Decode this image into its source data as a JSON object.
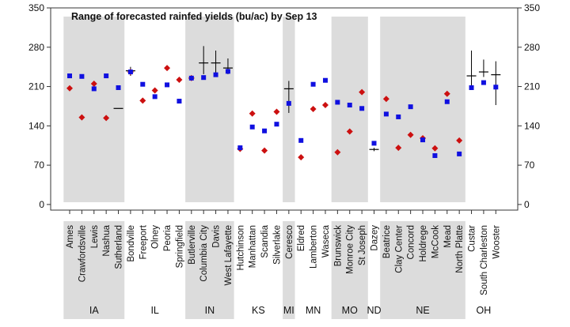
{
  "chart_data": {
    "type": "scatter",
    "title": "Range of forecasted rainfed yields (bu/ac) by Sep 13",
    "xlabel": "",
    "ylabel": "",
    "ylim": [
      -10,
      350
    ],
    "yticks": [
      0,
      70,
      140,
      210,
      280,
      350
    ],
    "grid": false,
    "legend": "none",
    "colors": {
      "square": "#1010e0",
      "diamond": "#cc1010",
      "range": "#000000",
      "band": "#dcdcdc",
      "axis": "#333333"
    },
    "sites": [
      {
        "name": "Ames",
        "state": "IA",
        "square": 229,
        "diamond": 207
      },
      {
        "name": "Crawfordsville",
        "state": "IA",
        "square": 228,
        "diamond": 155
      },
      {
        "name": "Lewis",
        "state": "IA",
        "square": 206,
        "diamond": 215
      },
      {
        "name": "Nashua",
        "state": "IA",
        "square": 229,
        "diamond": 154
      },
      {
        "name": "Sutherland",
        "state": "IA",
        "square": 208,
        "range_mid": 171
      },
      {
        "name": "Bondville",
        "state": "IL",
        "square": 236,
        "diamond": 236,
        "range_low": 229,
        "range_high": 245,
        "range_mid": 238
      },
      {
        "name": "Freeport",
        "state": "IL",
        "square": 214,
        "diamond": 185
      },
      {
        "name": "Olney",
        "state": "IL",
        "square": 192,
        "diamond": 203
      },
      {
        "name": "Peoria",
        "state": "IL",
        "square": 213,
        "diamond": 243
      },
      {
        "name": "Springfield",
        "state": "IL",
        "square": 184,
        "diamond": 222
      },
      {
        "name": "Butlerville",
        "state": "IN",
        "square": 225,
        "diamond": 225
      },
      {
        "name": "Columbia City",
        "state": "IN",
        "square": 226,
        "range_low": 232,
        "range_high": 282,
        "range_mid": 252
      },
      {
        "name": "Davis",
        "state": "IN",
        "square": 231,
        "range_low": 234,
        "range_high": 274,
        "range_mid": 252
      },
      {
        "name": "West Lafayette",
        "state": "IN",
        "square": 237,
        "range_low": 232,
        "range_high": 260,
        "range_mid": 243
      },
      {
        "name": "Hutchinson",
        "state": "KS",
        "square": 101,
        "diamond": 99
      },
      {
        "name": "Manhattan",
        "state": "KS",
        "square": 138,
        "diamond": 162
      },
      {
        "name": "Scandia",
        "state": "KS",
        "square": 131,
        "diamond": 96
      },
      {
        "name": "Silverlake",
        "state": "KS",
        "square": 143,
        "diamond": 165
      },
      {
        "name": "Ceresco",
        "state": "MI",
        "square": 180,
        "range_low": 163,
        "range_high": 220,
        "range_mid": 206
      },
      {
        "name": "Eldred",
        "state": "MN",
        "square": 114,
        "diamond": 84
      },
      {
        "name": "Lamberton",
        "state": "MN",
        "square": 214,
        "diamond": 170
      },
      {
        "name": "Waseca",
        "state": "MN",
        "square": 221,
        "diamond": 177
      },
      {
        "name": "Brunswick",
        "state": "MO",
        "square": 182,
        "diamond": 93
      },
      {
        "name": "Monroe City",
        "state": "MO",
        "square": 177,
        "diamond": 130
      },
      {
        "name": "St Joseph",
        "state": "MO",
        "square": 171,
        "diamond": 200
      },
      {
        "name": "Dazey",
        "state": "ND",
        "square": 109,
        "range_low": 95,
        "range_high": 101,
        "range_mid": 98
      },
      {
        "name": "Beatrice",
        "state": "NE",
        "square": 161,
        "diamond": 188
      },
      {
        "name": "Clay Center",
        "state": "NE",
        "square": 156,
        "diamond": 101
      },
      {
        "name": "Concord",
        "state": "NE",
        "square": 174,
        "diamond": 124
      },
      {
        "name": "Holdrege",
        "state": "NE",
        "square": 115,
        "diamond": 118
      },
      {
        "name": "McCook",
        "state": "NE",
        "square": 87,
        "diamond": 100
      },
      {
        "name": "Mead",
        "state": "NE",
        "square": 183,
        "diamond": 197
      },
      {
        "name": "North Platte",
        "state": "NE",
        "square": 90,
        "diamond": 114
      },
      {
        "name": "Custar",
        "state": "OH",
        "square": 208,
        "range_low": 212,
        "range_high": 274,
        "range_mid": 229
      },
      {
        "name": "South Charleston",
        "state": "OH",
        "square": 217,
        "range_low": 227,
        "range_high": 258,
        "range_mid": 236
      },
      {
        "name": "Wooster",
        "state": "OH",
        "square": 209,
        "range_low": 177,
        "range_high": 255,
        "range_mid": 231
      }
    ],
    "states": [
      {
        "label": "IA",
        "shaded": true
      },
      {
        "label": "IL",
        "shaded": false
      },
      {
        "label": "IN",
        "shaded": true
      },
      {
        "label": "KS",
        "shaded": false
      },
      {
        "label": "MI",
        "shaded": true
      },
      {
        "label": "MN",
        "shaded": false
      },
      {
        "label": "MO",
        "shaded": true
      },
      {
        "label": "ND",
        "shaded": false
      },
      {
        "label": "NE",
        "shaded": true
      },
      {
        "label": "OH",
        "shaded": false
      }
    ]
  }
}
